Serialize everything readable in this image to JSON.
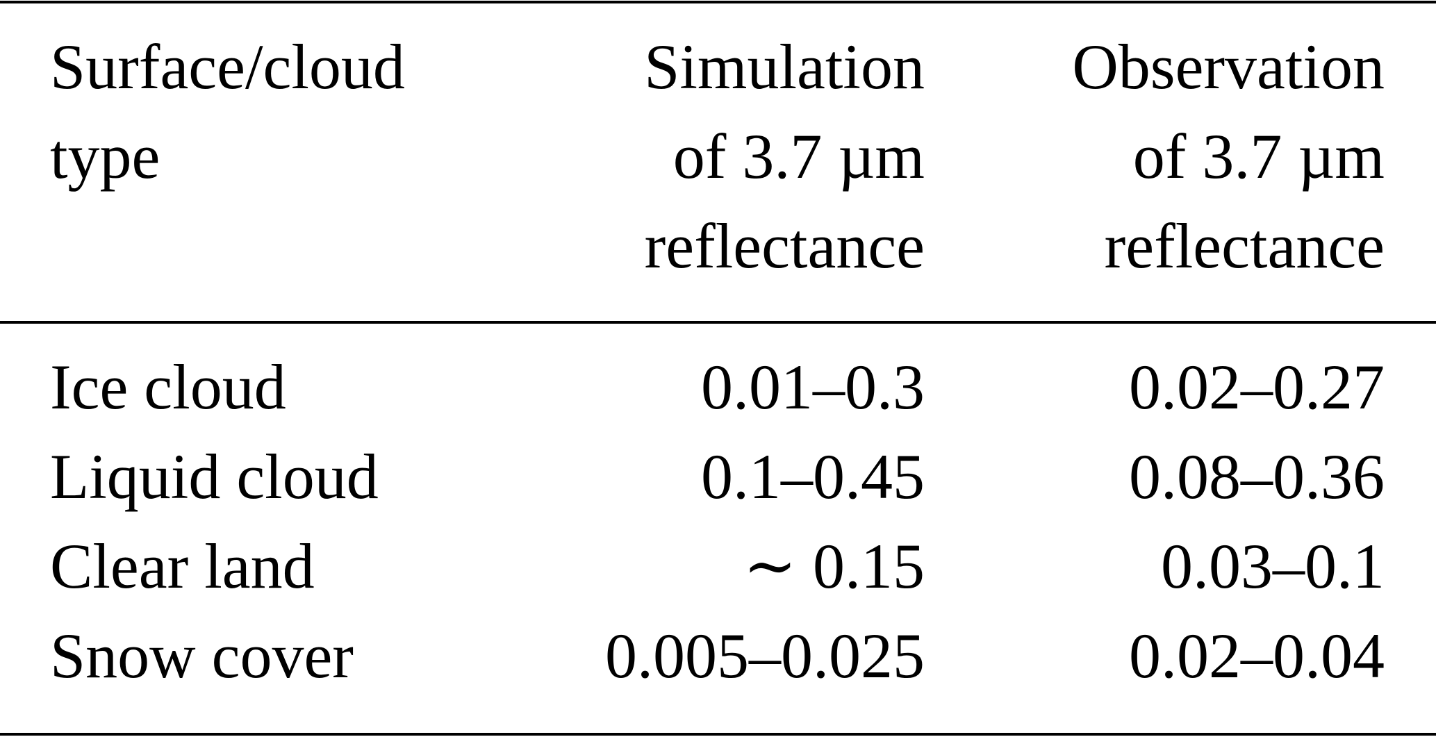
{
  "table": {
    "header": [
      "Surface/cloud type",
      "Simulation of 3.7 µm reflectance",
      "Observation of 3.7 µm reflectance"
    ],
    "rows": [
      [
        "Ice cloud",
        "0.01–0.3",
        "0.02–0.27"
      ],
      [
        "Liquid cloud",
        "0.1–0.45",
        "0.08–0.36"
      ],
      [
        "Clear land",
        "∼ 0.15",
        "0.03–0.1"
      ],
      [
        "Snow cover",
        "0.005–0.025",
        "0.02–0.04"
      ]
    ]
  }
}
